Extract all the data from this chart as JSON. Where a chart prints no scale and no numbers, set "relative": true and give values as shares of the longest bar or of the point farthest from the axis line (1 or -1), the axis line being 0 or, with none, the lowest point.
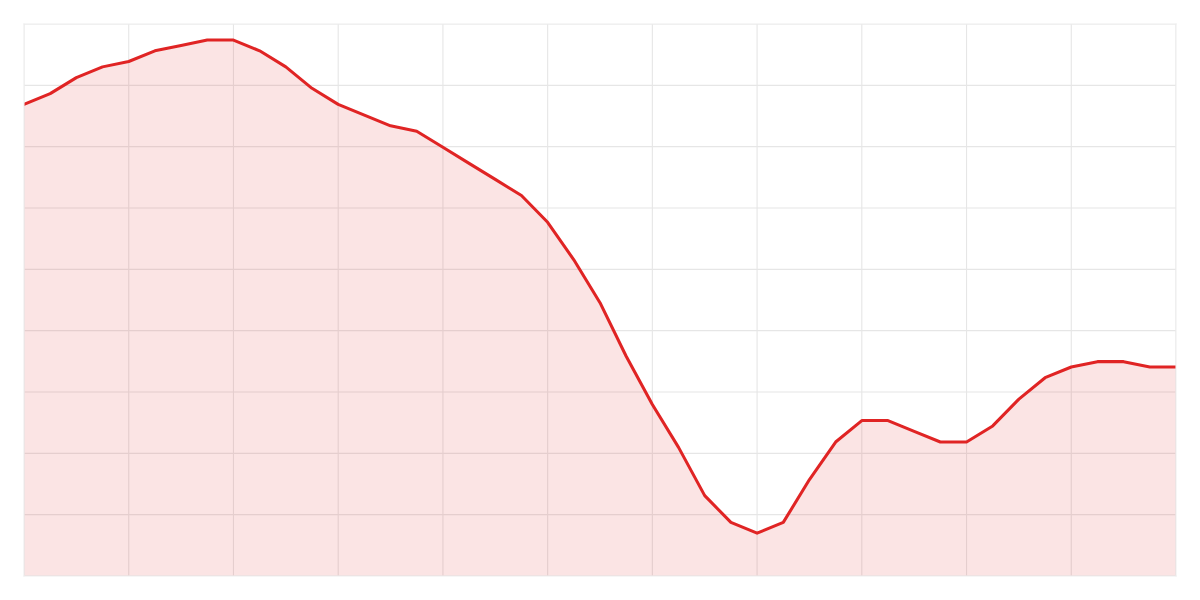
{
  "chart_data": {
    "type": "area",
    "relative": true,
    "categories": [
      null,
      null,
      null,
      null,
      null,
      null,
      null,
      null,
      null,
      null,
      null,
      null,
      null,
      null,
      null,
      null,
      null,
      null,
      null,
      null,
      null,
      null,
      null,
      null,
      null,
      null,
      null,
      null,
      null,
      null,
      null,
      null,
      null,
      null,
      null,
      null,
      null,
      null,
      null,
      null,
      null,
      null,
      null,
      null,
      null
    ],
    "series": [
      {
        "color": "#e02424",
        "values": [
          0.88,
          0.9,
          0.93,
          0.95,
          0.96,
          0.98,
          0.99,
          1.0,
          1.0,
          0.98,
          0.95,
          0.91,
          0.88,
          0.86,
          0.84,
          0.83,
          0.8,
          0.77,
          0.74,
          0.71,
          0.66,
          0.59,
          0.51,
          0.41,
          0.32,
          0.24,
          0.15,
          0.1,
          0.08,
          0.1,
          0.18,
          0.25,
          0.29,
          0.29,
          0.27,
          0.25,
          0.25,
          0.28,
          0.33,
          0.37,
          0.39,
          0.4,
          0.4,
          0.39,
          0.39
        ]
      }
    ],
    "grid": true
  }
}
